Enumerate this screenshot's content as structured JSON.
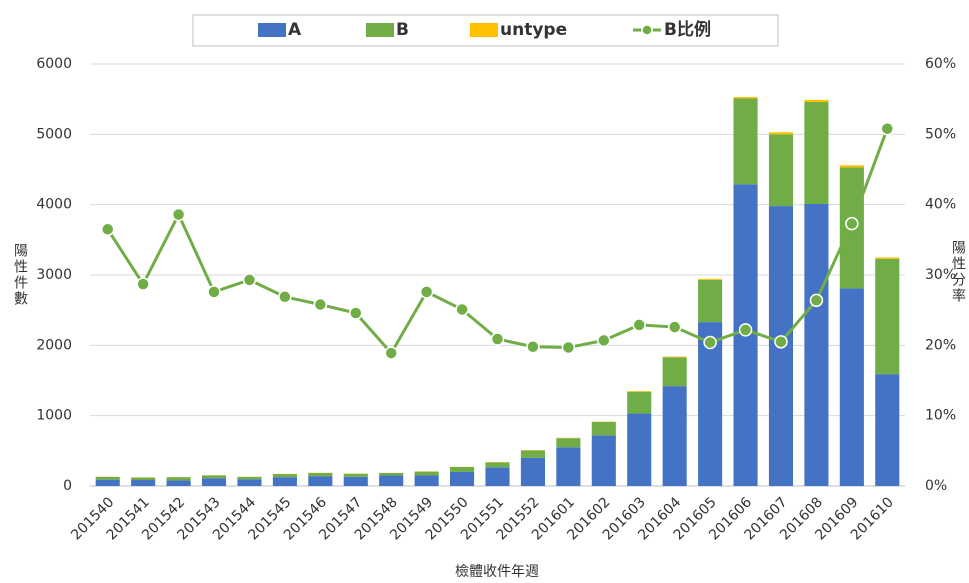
{
  "chart_data": {
    "type": "bar",
    "stacked": true,
    "x_label": "檢體收件年週",
    "y_label": "陽性件數",
    "y2_label": "陽性分率",
    "categories": [
      "201540",
      "201541",
      "201542",
      "201543",
      "201544",
      "201545",
      "201546",
      "201547",
      "201548",
      "201549",
      "201550",
      "201551",
      "201552",
      "201601",
      "201602",
      "201603",
      "201604",
      "201605",
      "201606",
      "201607",
      "201608",
      "201609",
      "201610"
    ],
    "series": [
      {
        "name": "A",
        "color": "#4472c4",
        "values": [
          90,
          85,
          80,
          110,
          95,
          125,
          140,
          130,
          150,
          150,
          200,
          265,
          400,
          550,
          720,
          1030,
          1420,
          2330,
          4290,
          3980,
          4010,
          2810,
          1590
        ]
      },
      {
        "name": "B",
        "color": "#70ad47",
        "values": [
          40,
          35,
          45,
          40,
          35,
          45,
          45,
          45,
          35,
          55,
          70,
          70,
          105,
          130,
          190,
          310,
          410,
          600,
          1220,
          1020,
          1450,
          1720,
          1640
        ]
      },
      {
        "name": "untype",
        "color": "#ffc000",
        "values": [
          3,
          3,
          2,
          3,
          2,
          3,
          3,
          3,
          2,
          3,
          3,
          5,
          5,
          5,
          5,
          10,
          10,
          15,
          20,
          30,
          30,
          30,
          20
        ]
      },
      {
        "name": "B比例",
        "color": "#70ad47",
        "type": "line",
        "axis": "y2",
        "values": [
          36.5,
          28.7,
          38.6,
          27.6,
          29.3,
          26.9,
          25.8,
          24.6,
          18.9,
          27.6,
          25.1,
          20.9,
          19.8,
          19.7,
          20.7,
          22.9,
          22.6,
          20.4,
          22.2,
          20.5,
          26.4,
          37.3,
          50.8
        ]
      }
    ],
    "ylim": [
      0,
      6000
    ],
    "yticks": [
      0,
      1000,
      2000,
      3000,
      4000,
      5000,
      6000
    ],
    "y2lim": [
      0,
      60
    ],
    "y2ticks": [
      {
        "value": 0,
        "label": "0%"
      },
      {
        "value": 10,
        "label": "10%"
      },
      {
        "value": 20,
        "label": "20%"
      },
      {
        "value": 30,
        "label": "30%"
      },
      {
        "value": 40,
        "label": "40%"
      },
      {
        "value": 50,
        "label": "50%"
      },
      {
        "value": 60,
        "label": "60%"
      }
    ],
    "grid": true,
    "legend": "top"
  }
}
